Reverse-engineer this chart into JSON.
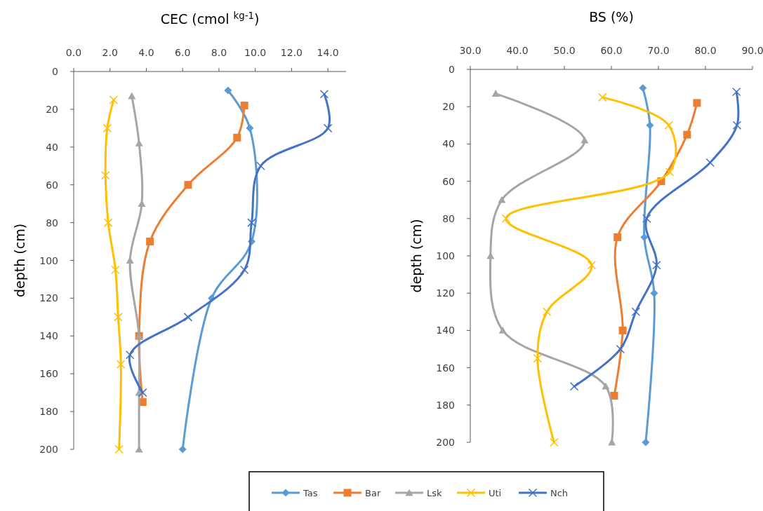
{
  "chart_data": [
    {
      "type": "line",
      "title": "CEC (cmol $^{kg-1}$)",
      "ylabel": "depth (cm)",
      "xlim": [
        0,
        15
      ],
      "xticks": [
        {
          "value": 0,
          "label": "0.0"
        },
        {
          "value": 2,
          "label": "2.0"
        },
        {
          "value": 4,
          "label": "4.0"
        },
        {
          "value": 6,
          "label": "6.0"
        },
        {
          "value": 8,
          "label": "8.0"
        },
        {
          "value": 10,
          "label": "10.0"
        },
        {
          "value": 12,
          "label": "12.0"
        },
        {
          "value": 14,
          "label": "14.0"
        }
      ],
      "ylim": [
        200,
        0
      ],
      "yticks": [
        0,
        20,
        40,
        60,
        80,
        100,
        120,
        140,
        160,
        180,
        200
      ],
      "grid": false,
      "legend": "bottom",
      "series": [
        {
          "name": "Tas",
          "color": "#5b9bd5",
          "marker": "diamond",
          "x": [
            8.5,
            9.7,
            9.8,
            7.6,
            6.0
          ],
          "values": [
            10,
            30,
            90,
            120,
            200
          ]
        },
        {
          "name": "Bar",
          "color": "#ed7d31",
          "marker": "square",
          "x": [
            9.4,
            9.0,
            6.3,
            4.2,
            3.6,
            3.8
          ],
          "values": [
            18,
            35,
            60,
            90,
            140,
            175
          ]
        },
        {
          "name": "Lsk",
          "color": "#a5a5a5",
          "marker": "triangle",
          "x": [
            3.2,
            3.6,
            3.75,
            3.1,
            3.6,
            3.6,
            3.6
          ],
          "values": [
            13,
            38,
            70,
            100,
            140,
            170,
            200
          ]
        },
        {
          "name": "Uti",
          "color": "#ffc000",
          "marker": "cross",
          "x": [
            2.2,
            1.85,
            1.75,
            1.9,
            2.3,
            2.45,
            2.6,
            2.5
          ],
          "values": [
            15,
            30,
            55,
            80,
            105,
            130,
            155,
            200
          ]
        },
        {
          "name": "Nch",
          "color": "#4472c4",
          "marker": "cross",
          "x": [
            13.8,
            14.0,
            10.3,
            9.8,
            9.4,
            6.3,
            3.1,
            3.8
          ],
          "values": [
            12,
            30,
            50,
            80,
            105,
            130,
            150,
            170
          ]
        }
      ]
    },
    {
      "type": "line",
      "title": "BS (%)",
      "ylabel": "depth (cm)",
      "xlim": [
        30,
        90
      ],
      "xticks": [
        {
          "value": 30,
          "label": "30.0"
        },
        {
          "value": 40,
          "label": "40.0"
        },
        {
          "value": 50,
          "label": "50.0"
        },
        {
          "value": 60,
          "label": "60.0"
        },
        {
          "value": 70,
          "label": "70.0"
        },
        {
          "value": 80,
          "label": "80.0"
        },
        {
          "value": 90,
          "label": "90.0"
        }
      ],
      "ylim": [
        200,
        0
      ],
      "yticks": [
        0,
        20,
        40,
        60,
        80,
        100,
        120,
        140,
        160,
        180,
        200
      ],
      "grid": false,
      "legend": "bottom",
      "series": [
        {
          "name": "Tas",
          "color": "#5b9bd5",
          "marker": "diamond",
          "x": [
            66.7,
            68.2,
            67.0,
            69.1,
            67.3
          ],
          "values": [
            10,
            30,
            90,
            120,
            200
          ]
        },
        {
          "name": "Bar",
          "color": "#ed7d31",
          "marker": "square",
          "x": [
            78.2,
            76.1,
            70.6,
            61.3,
            62.4,
            60.6
          ],
          "values": [
            18,
            35,
            60,
            90,
            140,
            175
          ]
        },
        {
          "name": "Lsk",
          "color": "#a5a5a5",
          "marker": "triangle",
          "x": [
            35.4,
            54.3,
            36.7,
            34.3,
            36.9,
            58.8,
            60.1
          ],
          "values": [
            13,
            38,
            70,
            100,
            140,
            170,
            200
          ]
        },
        {
          "name": "Uti",
          "color": "#ffc000",
          "marker": "cross",
          "x": [
            58.1,
            72.2,
            72.4,
            37.6,
            55.8,
            46.3,
            44.3,
            47.8
          ],
          "values": [
            15,
            30,
            55,
            80,
            105,
            130,
            155,
            200
          ]
        },
        {
          "name": "Nch",
          "color": "#4472c4",
          "marker": "cross",
          "x": [
            86.6,
            86.7,
            81.0,
            67.5,
            69.6,
            65.2,
            61.9,
            52.1
          ],
          "values": [
            12,
            30,
            50,
            80,
            105,
            130,
            150,
            170
          ]
        }
      ]
    }
  ]
}
